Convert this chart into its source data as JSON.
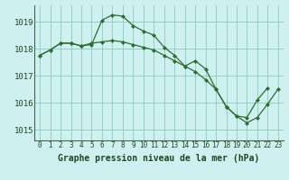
{
  "title": "Graphe pression niveau de la mer (hPa)",
  "bg_color": "#cff0f0",
  "grid_color": "#88ccbb",
  "line_color": "#2d6e2d",
  "marker_color": "#2d6e2d",
  "ylim": [
    1014.6,
    1019.6
  ],
  "xlim": [
    -0.5,
    23.5
  ],
  "yticks": [
    1015,
    1016,
    1017,
    1018,
    1019
  ],
  "xticks": [
    0,
    1,
    2,
    3,
    4,
    5,
    6,
    7,
    8,
    9,
    10,
    11,
    12,
    13,
    14,
    15,
    16,
    17,
    18,
    19,
    20,
    21,
    22,
    23
  ],
  "series1": [
    1017.75,
    1017.95,
    1018.2,
    1018.2,
    1018.1,
    1018.15,
    1019.05,
    1019.25,
    1019.2,
    1018.85,
    1018.65,
    1018.5,
    1018.05,
    1017.75,
    1017.35,
    1017.55,
    1017.25,
    1016.5,
    1015.85,
    1015.5,
    1015.45,
    1016.1,
    1016.55,
    null
  ],
  "series2": [
    1017.75,
    1017.95,
    1018.2,
    1018.2,
    1018.1,
    1018.2,
    1018.25,
    1018.3,
    1018.25,
    1018.15,
    1018.05,
    1017.95,
    1017.75,
    1017.55,
    1017.35,
    1017.15,
    1016.85,
    1016.5,
    1015.85,
    1015.5,
    1015.25,
    1015.45,
    1015.95,
    1016.5
  ],
  "tick_fontsize": 6.5,
  "xlabel_fontsize": 7,
  "title_color": "#1a4a1a"
}
